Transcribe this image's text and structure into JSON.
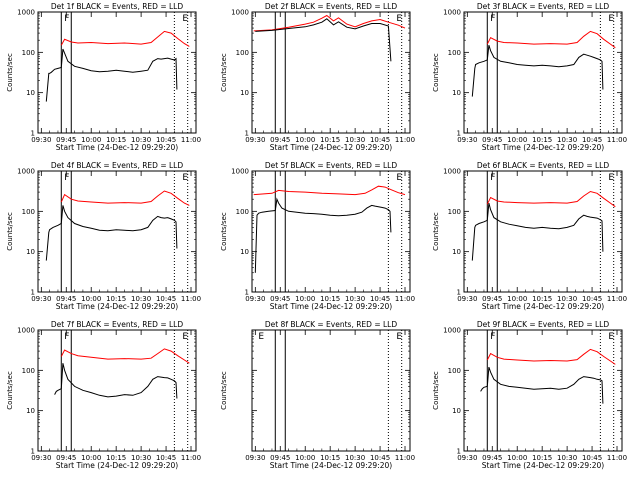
{
  "figure": {
    "xlabel": "Start Time (24-Dec-12 09:29:20)",
    "ylabel": "Counts/sec",
    "colors": {
      "events": "#000000",
      "lld": "#ff0000",
      "axis": "#000000"
    }
  },
  "chart_data": [
    {
      "type": "line",
      "title": "Det 1f BLACK = Events, RED = LLD",
      "xlabel": "Start Time (24-Dec-12 09:29:20)",
      "ylabel": "Counts/sec",
      "x_ticks": [
        "09:30",
        "09:45",
        "10:00",
        "10:15",
        "10:30",
        "10:45",
        "11:00"
      ],
      "y_ticks": [
        "1",
        "10",
        "100",
        "1000"
      ],
      "yscale": "log",
      "ylim": [
        1,
        1000
      ],
      "xlim_min": [
        -2,
        93
      ],
      "markers": [
        {
          "label": "F",
          "x": 12
        },
        {
          "label": "E",
          "x": 83
        }
      ],
      "solid_vlines": [
        12,
        18
      ],
      "dotted_vlines": [
        80,
        88
      ],
      "series": [
        {
          "color": "#ff0000",
          "x": [
            12,
            14,
            18,
            22,
            30,
            40,
            50,
            60,
            66,
            70,
            74,
            78,
            82,
            86,
            89
          ],
          "y": [
            150,
            210,
            180,
            170,
            175,
            165,
            170,
            160,
            175,
            240,
            330,
            300,
            220,
            165,
            140
          ]
        },
        {
          "color": "#000000",
          "x": [
            3,
            4.5,
            5,
            6,
            8,
            10,
            12,
            13,
            14,
            16,
            20,
            25,
            30,
            35,
            40,
            45,
            50,
            55,
            60,
            64,
            67,
            70,
            72,
            74,
            76,
            78,
            80,
            81,
            81.5
          ],
          "y": [
            6,
            30,
            30,
            32,
            38,
            40,
            42,
            120,
            95,
            60,
            45,
            40,
            35,
            33,
            34,
            36,
            34,
            32,
            34,
            36,
            60,
            70,
            68,
            70,
            72,
            68,
            65,
            70,
            12
          ]
        }
      ]
    },
    {
      "type": "line",
      "title": "Det 2f BLACK = Events, RED = LLD",
      "xlabel": "Start Time (24-Dec-12 09:29:20)",
      "ylabel": "Counts/sec",
      "x_ticks": [
        "09:30",
        "09:45",
        "10:00",
        "10:15",
        "10:30",
        "10:45",
        "11:00"
      ],
      "y_ticks": [
        "1",
        "10",
        "100",
        "1000"
      ],
      "yscale": "log",
      "ylim": [
        1,
        1000
      ],
      "xlim_min": [
        -2,
        93
      ],
      "markers": [
        {
          "label": "E",
          "x": 83
        }
      ],
      "solid_vlines": [
        12,
        18
      ],
      "dotted_vlines": [
        80,
        88
      ],
      "series": [
        {
          "color": "#ff0000",
          "x": [
            -1,
            10,
            20,
            30,
            35,
            40,
            43,
            47,
            50,
            55,
            60,
            65,
            70,
            75,
            80,
            86,
            90
          ],
          "y": [
            340,
            360,
            420,
            500,
            560,
            700,
            820,
            600,
            720,
            500,
            430,
            520,
            600,
            650,
            560,
            470,
            400
          ]
        },
        {
          "color": "#000000",
          "x": [
            0,
            10,
            20,
            30,
            35,
            40,
            43,
            47,
            50,
            55,
            60,
            65,
            70,
            75,
            80,
            81.5
          ],
          "y": [
            330,
            350,
            390,
            430,
            480,
            560,
            680,
            480,
            570,
            420,
            380,
            450,
            520,
            520,
            450,
            60
          ]
        }
      ]
    },
    {
      "type": "line",
      "title": "Det 3f BLACK = Events, RED = LLD",
      "xlabel": "Start Time (24-Dec-12 09:29:20)",
      "ylabel": "Counts/sec",
      "x_ticks": [
        "09:30",
        "09:45",
        "10:00",
        "10:15",
        "10:30",
        "10:45",
        "11:00"
      ],
      "y_ticks": [
        "1",
        "10",
        "100",
        "1000"
      ],
      "yscale": "log",
      "ylim": [
        1,
        1000
      ],
      "xlim_min": [
        -2,
        93
      ],
      "markers": [
        {
          "label": "F",
          "x": 12
        },
        {
          "label": "E",
          "x": 83
        }
      ],
      "solid_vlines": [
        12,
        18
      ],
      "dotted_vlines": [
        80,
        88
      ],
      "series": [
        {
          "color": "#ff0000",
          "x": [
            12,
            14,
            18,
            22,
            30,
            40,
            50,
            60,
            66,
            70,
            74,
            78,
            82,
            86,
            89
          ],
          "y": [
            160,
            230,
            190,
            175,
            170,
            160,
            165,
            160,
            175,
            250,
            330,
            290,
            210,
            160,
            130
          ]
        },
        {
          "color": "#000000",
          "x": [
            3,
            4.5,
            5,
            7,
            10,
            12,
            13,
            14,
            16,
            20,
            25,
            30,
            35,
            40,
            45,
            50,
            55,
            60,
            64,
            67,
            70,
            72,
            74,
            76,
            78,
            80,
            81,
            81.5
          ],
          "y": [
            8,
            40,
            50,
            55,
            60,
            65,
            150,
            110,
            75,
            60,
            55,
            50,
            48,
            46,
            48,
            46,
            44,
            46,
            50,
            75,
            90,
            85,
            80,
            75,
            70,
            65,
            60,
            12
          ]
        }
      ]
    },
    {
      "type": "line",
      "title": "Det 4f BLACK = Events, RED = LLD",
      "xlabel": "Start Time (24-Dec-12 09:29:20)",
      "ylabel": "Counts/sec",
      "x_ticks": [
        "09:30",
        "09:45",
        "10:00",
        "10:15",
        "10:30",
        "10:45",
        "11:00"
      ],
      "y_ticks": [
        "1",
        "10",
        "100",
        "1000"
      ],
      "yscale": "log",
      "ylim": [
        1,
        1000
      ],
      "xlim_min": [
        -2,
        93
      ],
      "markers": [
        {
          "label": "F",
          "x": 12
        },
        {
          "label": "E",
          "x": 83
        }
      ],
      "solid_vlines": [
        12,
        18
      ],
      "dotted_vlines": [
        80,
        88
      ],
      "series": [
        {
          "color": "#ff0000",
          "x": [
            12,
            14,
            18,
            22,
            30,
            40,
            50,
            60,
            66,
            70,
            74,
            78,
            82,
            86,
            89
          ],
          "y": [
            170,
            260,
            200,
            180,
            170,
            160,
            165,
            160,
            175,
            240,
            320,
            280,
            210,
            160,
            140
          ]
        },
        {
          "color": "#000000",
          "x": [
            3,
            4.5,
            5,
            7,
            10,
            12,
            13,
            14,
            16,
            20,
            25,
            30,
            35,
            40,
            45,
            50,
            55,
            60,
            64,
            67,
            70,
            72,
            74,
            76,
            78,
            80,
            81,
            81.5
          ],
          "y": [
            6,
            30,
            35,
            40,
            45,
            50,
            140,
            100,
            70,
            50,
            42,
            38,
            34,
            33,
            35,
            34,
            33,
            35,
            40,
            60,
            75,
            70,
            68,
            70,
            65,
            60,
            55,
            12
          ]
        }
      ]
    },
    {
      "type": "line",
      "title": "Det 5f BLACK = Events, RED = LLD",
      "xlabel": "Start Time (24-Dec-12 09:29:20)",
      "ylabel": "Counts/sec",
      "x_ticks": [
        "09:30",
        "09:45",
        "10:00",
        "10:15",
        "10:30",
        "10:45",
        "11:00"
      ],
      "y_ticks": [
        "1",
        "10",
        "100",
        "1000"
      ],
      "yscale": "log",
      "ylim": [
        1,
        1000
      ],
      "xlim_min": [
        -2,
        93
      ],
      "markers": [
        {
          "label": "E",
          "x": 83
        }
      ],
      "solid_vlines": [
        12,
        18
      ],
      "dotted_vlines": [
        80,
        88
      ],
      "series": [
        {
          "color": "#ff0000",
          "x": [
            -1,
            10,
            14,
            20,
            30,
            40,
            50,
            60,
            66,
            70,
            74,
            78,
            82,
            86,
            90
          ],
          "y": [
            260,
            280,
            330,
            310,
            300,
            280,
            270,
            260,
            280,
            340,
            420,
            400,
            340,
            290,
            260
          ]
        },
        {
          "color": "#000000",
          "x": [
            0,
            1,
            2,
            4,
            8,
            12,
            13,
            14,
            16,
            20,
            25,
            30,
            35,
            40,
            45,
            50,
            55,
            60,
            64,
            67,
            70,
            72,
            74,
            76,
            78,
            80,
            81,
            81.5
          ],
          "y": [
            3,
            80,
            90,
            95,
            100,
            105,
            200,
            160,
            120,
            100,
            95,
            90,
            88,
            85,
            80,
            78,
            80,
            85,
            95,
            120,
            140,
            135,
            130,
            125,
            120,
            110,
            100,
            30
          ]
        }
      ]
    },
    {
      "type": "line",
      "title": "Det 6f BLACK = Events, RED = LLD",
      "xlabel": "Start Time (24-Dec-12 09:29:20)",
      "ylabel": "Counts/sec",
      "x_ticks": [
        "09:30",
        "09:45",
        "10:00",
        "10:15",
        "10:30",
        "10:45",
        "11:00"
      ],
      "y_ticks": [
        "1",
        "10",
        "100",
        "1000"
      ],
      "yscale": "log",
      "ylim": [
        1,
        1000
      ],
      "xlim_min": [
        -2,
        93
      ],
      "markers": [
        {
          "label": "F",
          "x": 12
        },
        {
          "label": "E",
          "x": 83
        }
      ],
      "solid_vlines": [
        12,
        18
      ],
      "dotted_vlines": [
        80,
        88
      ],
      "series": [
        {
          "color": "#ff0000",
          "x": [
            12,
            14,
            18,
            22,
            30,
            40,
            50,
            60,
            66,
            70,
            74,
            78,
            82,
            86,
            89
          ],
          "y": [
            150,
            220,
            180,
            170,
            165,
            160,
            165,
            160,
            175,
            240,
            310,
            280,
            210,
            160,
            130
          ]
        },
        {
          "color": "#000000",
          "x": [
            3,
            4.5,
            5,
            7,
            10,
            12,
            13,
            14,
            16,
            20,
            25,
            30,
            35,
            40,
            45,
            50,
            55,
            60,
            64,
            67,
            70,
            72,
            74,
            76,
            78,
            80,
            81,
            81.5
          ],
          "y": [
            6,
            40,
            45,
            50,
            55,
            60,
            160,
            110,
            70,
            55,
            48,
            44,
            40,
            38,
            40,
            38,
            37,
            40,
            45,
            65,
            80,
            75,
            72,
            70,
            68,
            62,
            58,
            10
          ]
        }
      ]
    },
    {
      "type": "line",
      "title": "Det 7f BLACK = Events, RED = LLD",
      "xlabel": "Start Time (24-Dec-12 09:29:20)",
      "ylabel": "Counts/sec",
      "x_ticks": [
        "09:30",
        "09:45",
        "10:00",
        "10:15",
        "10:30",
        "10:45",
        "11:00"
      ],
      "y_ticks": [
        "1",
        "10",
        "100",
        "1000"
      ],
      "yscale": "log",
      "ylim": [
        1,
        1000
      ],
      "xlim_min": [
        -2,
        93
      ],
      "markers": [
        {
          "label": "F",
          "x": 12
        },
        {
          "label": "E",
          "x": 83
        }
      ],
      "solid_vlines": [
        12,
        18
      ],
      "dotted_vlines": [
        80,
        88
      ],
      "series": [
        {
          "color": "#ff0000",
          "x": [
            12,
            14,
            18,
            22,
            30,
            40,
            50,
            60,
            66,
            70,
            74,
            78,
            82,
            86,
            89
          ],
          "y": [
            220,
            320,
            260,
            230,
            210,
            190,
            195,
            190,
            200,
            260,
            340,
            300,
            230,
            180,
            150
          ]
        },
        {
          "color": "#000000",
          "x": [
            8,
            9,
            10,
            12,
            13,
            14,
            16,
            20,
            25,
            30,
            35,
            40,
            45,
            50,
            55,
            60,
            64,
            67,
            70,
            72,
            74,
            76,
            78,
            80,
            81,
            81.5
          ],
          "y": [
            25,
            30,
            32,
            35,
            150,
            100,
            60,
            40,
            32,
            28,
            24,
            22,
            23,
            25,
            24,
            28,
            40,
            60,
            70,
            68,
            66,
            65,
            60,
            55,
            50,
            20
          ]
        }
      ]
    },
    {
      "type": "line",
      "title": "Det 8f BLACK = Events, RED = LLD",
      "xlabel": "Start Time (24-Dec-12 09:29:20)",
      "ylabel": "Counts/sec",
      "x_ticks": [
        "09:30",
        "09:45",
        "10:00",
        "10:15",
        "10:30",
        "10:45",
        "11:00"
      ],
      "y_ticks": [],
      "yscale": "log",
      "ylim": [
        1,
        1000
      ],
      "xlim_min": [
        -2,
        93
      ],
      "markers": [
        {
          "label": "E",
          "x": 0
        },
        {
          "label": "E",
          "x": 83
        }
      ],
      "solid_vlines": [
        12,
        18
      ],
      "dotted_vlines": [
        80,
        88
      ],
      "series": []
    },
    {
      "type": "line",
      "title": "Det 9f BLACK = Events, RED = LLD",
      "xlabel": "Start Time (24-Dec-12 09:29:20)",
      "ylabel": "Counts/sec",
      "x_ticks": [
        "09:30",
        "09:45",
        "10:00",
        "10:15",
        "10:30",
        "10:45",
        "11:00"
      ],
      "y_ticks": [
        "1",
        "10",
        "100",
        "1000"
      ],
      "yscale": "log",
      "ylim": [
        1,
        1000
      ],
      "xlim_min": [
        -2,
        93
      ],
      "markers": [
        {
          "label": "F",
          "x": 12
        },
        {
          "label": "E",
          "x": 83
        }
      ],
      "solid_vlines": [
        12,
        18
      ],
      "dotted_vlines": [
        80,
        88
      ],
      "series": [
        {
          "color": "#ff0000",
          "x": [
            12,
            14,
            18,
            22,
            30,
            40,
            50,
            60,
            66,
            70,
            74,
            78,
            82,
            86,
            89
          ],
          "y": [
            180,
            260,
            210,
            190,
            180,
            170,
            175,
            170,
            185,
            250,
            330,
            290,
            220,
            170,
            140
          ]
        },
        {
          "color": "#000000",
          "x": [
            8,
            9,
            10,
            12,
            13,
            14,
            16,
            20,
            25,
            30,
            35,
            40,
            45,
            50,
            55,
            60,
            64,
            67,
            70,
            72,
            74,
            76,
            78,
            80,
            81,
            81.5
          ],
          "y": [
            30,
            35,
            38,
            40,
            120,
            90,
            60,
            45,
            40,
            38,
            36,
            34,
            35,
            36,
            34,
            36,
            45,
            60,
            70,
            68,
            66,
            64,
            60,
            58,
            55,
            15
          ]
        }
      ]
    }
  ]
}
